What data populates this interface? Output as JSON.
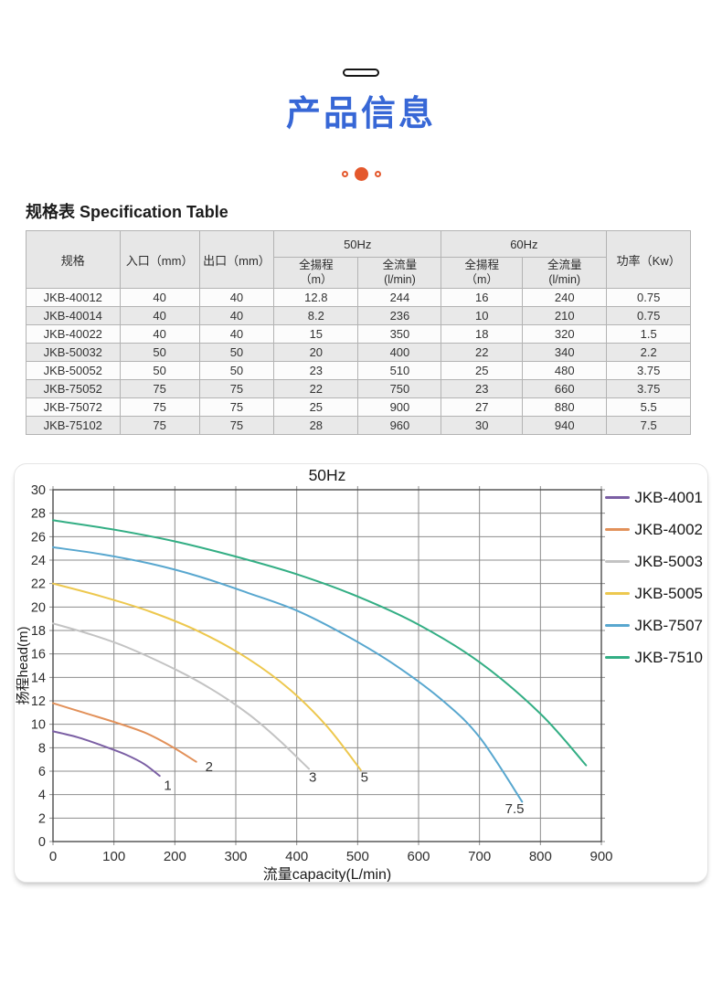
{
  "header": {
    "title": "产品信息",
    "title_color": "#3767d6",
    "accent_color": "#e4582c",
    "dots": {
      "count": 3,
      "active_index": 1
    }
  },
  "spec_table": {
    "title": "规格表 Specification Table",
    "headers": {
      "model": "规格",
      "inlet": "入口（mm）",
      "outlet": "出口（mm）",
      "hz50": "50Hz",
      "hz60": "60Hz",
      "head": "全揚程",
      "head_unit": "（m）",
      "flow": "全流量",
      "flow_unit": "(l/min)",
      "power": "功率（Kw）"
    },
    "rows": [
      [
        "JKB-40012",
        "40",
        "40",
        "12.8",
        "244",
        "16",
        "240",
        "0.75"
      ],
      [
        "JKB-40014",
        "40",
        "40",
        "8.2",
        "236",
        "10",
        "210",
        "0.75"
      ],
      [
        "JKB-40022",
        "40",
        "40",
        "15",
        "350",
        "18",
        "320",
        "1.5"
      ],
      [
        "JKB-50032",
        "50",
        "50",
        "20",
        "400",
        "22",
        "340",
        "2.2"
      ],
      [
        "JKB-50052",
        "50",
        "50",
        "23",
        "510",
        "25",
        "480",
        "3.75"
      ],
      [
        "JKB-75052",
        "75",
        "75",
        "22",
        "750",
        "23",
        "660",
        "3.75"
      ],
      [
        "JKB-75072",
        "75",
        "75",
        "25",
        "900",
        "27",
        "880",
        "5.5"
      ],
      [
        "JKB-75102",
        "75",
        "75",
        "28",
        "960",
        "30",
        "940",
        "7.5"
      ]
    ]
  },
  "chart_data": {
    "type": "line",
    "title": "50Hz",
    "xlabel": "流量capacity(L/min)",
    "ylabel": "扬程head(m)",
    "xlim": [
      0,
      900
    ],
    "ylim": [
      0,
      30
    ],
    "xtick_step": 100,
    "ytick_step": 2,
    "grid": true,
    "legend_position": "right",
    "series": [
      {
        "name": "JKB-4001",
        "color": "#7b5fa4",
        "points": [
          [
            0,
            9.4
          ],
          [
            40,
            8.9
          ],
          [
            80,
            8.2
          ],
          [
            120,
            7.4
          ],
          [
            150,
            6.6
          ],
          [
            175,
            5.6
          ]
        ]
      },
      {
        "name": "JKB-4002",
        "color": "#e2915a",
        "points": [
          [
            0,
            11.8
          ],
          [
            50,
            11.0
          ],
          [
            100,
            10.2
          ],
          [
            150,
            9.3
          ],
          [
            195,
            8.1
          ],
          [
            235,
            6.8
          ]
        ]
      },
      {
        "name": "JKB-5003",
        "color": "#c3c3c3",
        "points": [
          [
            0,
            18.6
          ],
          [
            60,
            17.7
          ],
          [
            120,
            16.6
          ],
          [
            200,
            14.7
          ],
          [
            260,
            13.0
          ],
          [
            320,
            10.9
          ],
          [
            370,
            8.7
          ],
          [
            420,
            6.2
          ]
        ]
      },
      {
        "name": "JKB-5005",
        "color": "#edc84f",
        "points": [
          [
            0,
            22.0
          ],
          [
            80,
            20.9
          ],
          [
            160,
            19.6
          ],
          [
            240,
            17.9
          ],
          [
            320,
            15.6
          ],
          [
            390,
            12.9
          ],
          [
            450,
            9.8
          ],
          [
            505,
            6.1
          ]
        ]
      },
      {
        "name": "JKB-7507",
        "color": "#58a7cf",
        "points": [
          [
            0,
            25.1
          ],
          [
            80,
            24.5
          ],
          [
            160,
            23.7
          ],
          [
            240,
            22.6
          ],
          [
            320,
            21.2
          ],
          [
            400,
            19.7
          ],
          [
            480,
            17.6
          ],
          [
            560,
            15.1
          ],
          [
            640,
            12.0
          ],
          [
            700,
            8.9
          ],
          [
            770,
            3.4
          ]
        ]
      },
      {
        "name": "JKB-7510",
        "color": "#33ae84",
        "points": [
          [
            0,
            27.4
          ],
          [
            100,
            26.6
          ],
          [
            200,
            25.6
          ],
          [
            300,
            24.3
          ],
          [
            400,
            22.8
          ],
          [
            500,
            20.9
          ],
          [
            600,
            18.5
          ],
          [
            700,
            15.3
          ],
          [
            800,
            10.9
          ],
          [
            875,
            6.5
          ]
        ]
      }
    ],
    "curve_labels": [
      {
        "text": "1",
        "x": 182,
        "y": 4.4
      },
      {
        "text": "2",
        "x": 250,
        "y": 6.0
      },
      {
        "text": "3",
        "x": 420,
        "y": 5.1
      },
      {
        "text": "5",
        "x": 505,
        "y": 5.1
      },
      {
        "text": "7.5",
        "x": 742,
        "y": 2.4
      }
    ]
  }
}
